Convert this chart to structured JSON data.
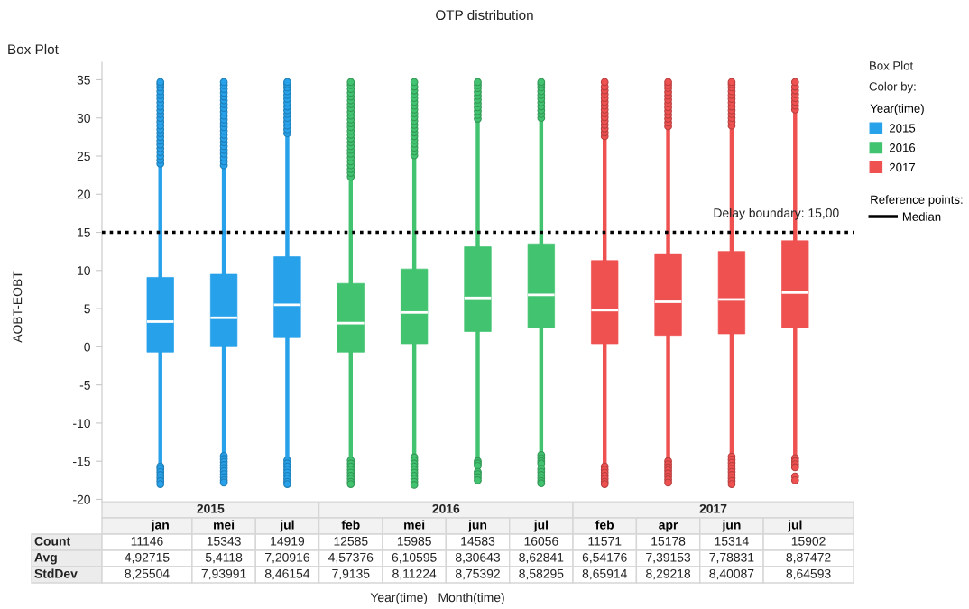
{
  "chart_data": {
    "type": "box",
    "title": "OTP distribution",
    "subtitle": "Box Plot",
    "xlabel": "Year(time)   Month(time)",
    "ylabel": "AOBT-EOBT",
    "legend_title": "Year(time)",
    "legend": "right",
    "categories": [
      "jan",
      "mei",
      "jul",
      "feb",
      "mei",
      "jun",
      "jul",
      "feb",
      "apr",
      "jun",
      "jul"
    ],
    "series": [
      {
        "name": "2015",
        "color": "#27a1ea",
        "boxes": [
          {
            "low": -15.4,
            "q1": -0.7,
            "median": 3.3,
            "q3": 9.1,
            "high": 23.7,
            "outliers": [
              24.0,
              24.5,
              25.0,
              25.5,
              26.0,
              26.5,
              27.0,
              27.5,
              28.0,
              28.5,
              29.0,
              29.5,
              30.0,
              30.5,
              31.0,
              31.5,
              32.0,
              32.5,
              33.0,
              33.5,
              34.0,
              34.4,
              34.7,
              -15.7,
              -16.0,
              -16.4,
              -16.8,
              -17.2,
              -17.6,
              -18.0
            ]
          },
          {
            "low": -14.0,
            "q1": 0.0,
            "median": 3.8,
            "q3": 9.5,
            "high": 23.5,
            "outliers": [
              23.8,
              24.3,
              24.8,
              25.3,
              25.8,
              26.3,
              26.8,
              27.3,
              27.8,
              28.3,
              28.8,
              29.3,
              29.8,
              30.3,
              30.8,
              31.3,
              31.8,
              32.3,
              32.8,
              33.3,
              33.8,
              34.3,
              34.7,
              -14.3,
              -14.7,
              -15.1,
              -15.5,
              -15.9,
              -16.3,
              -16.7,
              -17.1,
              -17.5,
              -17.8
            ]
          },
          {
            "low": -14.6,
            "q1": 1.2,
            "median": 5.5,
            "q3": 11.8,
            "high": 27.7,
            "outliers": [
              28.0,
              28.5,
              29.0,
              29.5,
              30.0,
              30.5,
              31.0,
              31.5,
              32.0,
              32.5,
              33.0,
              33.5,
              34.0,
              34.4,
              34.7,
              -14.9,
              -15.3,
              -15.7,
              -16.1,
              -16.5,
              -16.9,
              -17.3,
              -17.7,
              -18.0
            ]
          },
          null,
          null,
          null,
          null,
          null,
          null,
          null,
          null
        ]
      },
      {
        "name": "2016",
        "color": "#41c36f",
        "boxes": [
          null,
          null,
          null,
          {
            "low": -14.6,
            "q1": -0.7,
            "median": 3.1,
            "q3": 8.3,
            "high": 22.0,
            "outliers": [
              22.3,
              22.8,
              23.3,
              23.8,
              24.3,
              24.8,
              25.3,
              25.8,
              26.3,
              26.8,
              27.3,
              27.8,
              28.3,
              28.8,
              29.3,
              29.8,
              30.3,
              30.8,
              31.3,
              31.8,
              32.3,
              32.8,
              33.3,
              33.8,
              34.3,
              34.7,
              -14.9,
              -15.3,
              -15.7,
              -16.1,
              -16.5,
              -16.9,
              -17.3,
              -17.7,
              -18.0
            ]
          },
          {
            "low": -14.2,
            "q1": 0.4,
            "median": 4.5,
            "q3": 10.2,
            "high": 24.8,
            "outliers": [
              25.1,
              25.6,
              26.1,
              26.6,
              27.1,
              27.6,
              28.1,
              28.6,
              29.1,
              29.6,
              30.1,
              30.6,
              31.1,
              31.6,
              32.1,
              32.6,
              33.1,
              33.6,
              34.1,
              34.7,
              -14.5,
              -14.9,
              -15.3,
              -15.7,
              -16.1,
              -16.5,
              -16.9,
              -17.3,
              -17.7,
              -18.1
            ]
          },
          {
            "low": -14.7,
            "q1": 2.0,
            "median": 6.4,
            "q3": 13.1,
            "high": 29.6,
            "outliers": [
              29.9,
              30.4,
              30.9,
              31.4,
              31.9,
              32.4,
              32.9,
              33.4,
              33.9,
              34.3,
              34.7,
              -15.0,
              -15.3,
              -15.6,
              -16.4,
              -16.7,
              -17.1,
              -17.5
            ]
          },
          {
            "low": -13.9,
            "q1": 2.5,
            "median": 6.8,
            "q3": 13.5,
            "high": 29.7,
            "outliers": [
              30.0,
              30.5,
              31.0,
              31.5,
              32.0,
              32.5,
              33.0,
              33.5,
              34.0,
              34.4,
              34.7,
              -14.2,
              -14.6,
              -15.0,
              -15.3,
              -16.0,
              -16.4,
              -16.8,
              -17.2,
              -17.6,
              -17.9
            ]
          },
          null,
          null,
          null,
          null
        ]
      },
      {
        "name": "2017",
        "color": "#ef5151",
        "boxes": [
          null,
          null,
          null,
          null,
          null,
          null,
          null,
          {
            "low": -15.4,
            "q1": 0.4,
            "median": 4.8,
            "q3": 11.3,
            "high": 27.3,
            "outliers": [
              27.6,
              28.1,
              28.6,
              29.1,
              29.6,
              30.1,
              30.6,
              31.1,
              31.6,
              32.1,
              32.6,
              33.1,
              33.6,
              34.1,
              34.7,
              -15.7,
              -16.1,
              -16.5,
              -16.9,
              -17.3,
              -17.7,
              -18.0
            ]
          },
          {
            "low": -14.7,
            "q1": 1.5,
            "median": 5.9,
            "q3": 12.2,
            "high": 28.6,
            "outliers": [
              28.9,
              29.4,
              29.9,
              30.4,
              30.9,
              31.4,
              31.9,
              32.4,
              32.9,
              33.4,
              33.9,
              34.3,
              34.7,
              -15.0,
              -15.4,
              -15.8,
              -16.2,
              -16.6,
              -17.0,
              -17.4,
              -17.8
            ]
          },
          {
            "low": -14.1,
            "q1": 1.7,
            "median": 6.2,
            "q3": 12.5,
            "high": 28.7,
            "outliers": [
              29.0,
              29.5,
              30.0,
              30.5,
              31.0,
              31.5,
              32.0,
              32.5,
              33.0,
              33.5,
              34.0,
              34.4,
              34.7,
              -14.4,
              -14.8,
              -15.2,
              -15.6,
              -16.0,
              -16.4,
              -16.8,
              -17.2,
              -17.6,
              -18.0
            ]
          },
          {
            "low": -14.3,
            "q1": 2.5,
            "median": 7.1,
            "q3": 13.9,
            "high": 30.8,
            "outliers": [
              31.1,
              31.6,
              32.1,
              32.6,
              33.1,
              33.6,
              34.1,
              34.7,
              -14.6,
              -15.0,
              -15.4,
              -15.8,
              -17.0,
              -17.5
            ]
          }
        ]
      }
    ],
    "ylim": [
      -20.3,
      37.3
    ],
    "yticks": [
      -20,
      -15,
      -10,
      -5,
      0,
      5,
      10,
      15,
      20,
      25,
      30,
      35
    ],
    "ref_lines": [
      {
        "axis": "y",
        "value": 15,
        "label": "Delay boundary: 15,00",
        "color": "#000000",
        "line_style": "dotted"
      }
    ],
    "annotations": [
      "Box Plot",
      "Color by:",
      "Reference points:",
      "Median",
      "Count",
      "11146",
      "15343",
      "14919",
      "12585",
      "15985",
      "14583",
      "16056",
      "11571",
      "15178",
      "15314",
      "15902",
      "Avg",
      "4,92715",
      "5,4118",
      "7,20916",
      "4,57376",
      "6,10595",
      "8,30643",
      "8,62841",
      "6,54176",
      "7,39153",
      "7,78831",
      "8,87472",
      "StdDev",
      "8,25504",
      "7,93991",
      "8,46154",
      "7,9135",
      "8,11224",
      "8,75392",
      "8,58295",
      "8,65914",
      "8,29218",
      "8,40087",
      "8,64593"
    ]
  }
}
